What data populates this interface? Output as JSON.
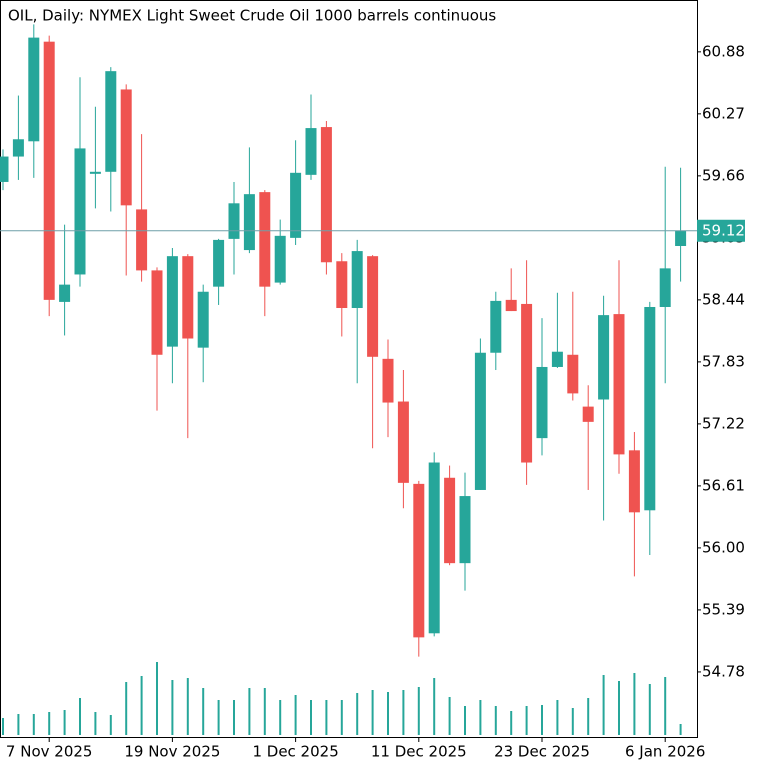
{
  "chart_data": {
    "type": "candlestick",
    "title": "OIL, Daily:  NYMEX Light Sweet Crude Oil 1000 barrels continuous",
    "categories": [
      null,
      null,
      null,
      "7 Nov 2025",
      null,
      null,
      null,
      null,
      null,
      null,
      null,
      "19 Nov 2025",
      null,
      null,
      null,
      null,
      null,
      null,
      null,
      "1 Dec 2025",
      null,
      null,
      null,
      null,
      null,
      null,
      null,
      "11 Dec 2025",
      null,
      null,
      null,
      null,
      null,
      null,
      null,
      "23 Dec 2025",
      null,
      null,
      null,
      null,
      null,
      null,
      null,
      "6 Jan 2026",
      null
    ],
    "open": [
      59.6,
      59.85,
      60.0,
      60.98,
      58.42,
      58.69,
      59.68,
      59.7,
      60.51,
      59.33,
      58.73,
      57.98,
      58.87,
      57.97,
      58.57,
      59.04,
      58.93,
      59.5,
      58.61,
      59.05,
      59.67,
      60.14,
      58.82,
      58.36,
      58.87,
      57.86,
      57.44,
      56.63,
      55.16,
      56.69,
      55.85,
      56.57,
      57.92,
      58.44,
      58.4,
      57.08,
      57.78,
      57.9,
      57.39,
      57.46,
      58.3,
      56.96,
      56.37,
      58.37,
      58.97
    ],
    "high": [
      59.92,
      60.45,
      61.15,
      61.04,
      59.18,
      60.63,
      60.34,
      60.73,
      60.56,
      60.07,
      58.76,
      58.95,
      58.89,
      58.59,
      59.04,
      59.6,
      59.94,
      59.52,
      59.23,
      60.01,
      60.46,
      60.2,
      58.9,
      59.03,
      58.88,
      58.05,
      57.75,
      56.66,
      56.94,
      56.81,
      56.74,
      58.06,
      58.52,
      58.75,
      58.83,
      58.26,
      58.51,
      58.52,
      57.6,
      58.48,
      58.83,
      57.14,
      58.42,
      59.75,
      59.74
    ],
    "low": [
      59.52,
      59.62,
      59.64,
      58.28,
      58.09,
      58.57,
      59.34,
      59.31,
      58.68,
      58.62,
      57.35,
      57.62,
      57.08,
      57.63,
      58.39,
      58.69,
      58.9,
      58.28,
      58.59,
      58.98,
      59.62,
      58.69,
      58.08,
      57.62,
      56.98,
      57.09,
      56.39,
      54.93,
      55.13,
      55.83,
      55.58,
      56.57,
      57.75,
      58.33,
      56.62,
      56.91,
      57.77,
      57.45,
      56.57,
      56.27,
      56.73,
      55.72,
      55.93,
      57.62,
      58.62
    ],
    "close": [
      59.85,
      60.02,
      61.02,
      58.44,
      58.59,
      59.93,
      59.7,
      60.69,
      59.37,
      58.73,
      57.9,
      58.87,
      58.06,
      58.52,
      59.03,
      59.39,
      59.48,
      58.57,
      59.07,
      59.69,
      60.13,
      58.81,
      58.36,
      58.92,
      57.88,
      57.43,
      56.64,
      55.12,
      56.84,
      55.85,
      56.51,
      57.92,
      58.43,
      58.33,
      56.84,
      57.78,
      57.93,
      57.52,
      57.24,
      58.29,
      56.92,
      56.35,
      58.37,
      58.75,
      59.12
    ],
    "volume": [
      17,
      21,
      21,
      23,
      25,
      37,
      23,
      20,
      53,
      59,
      73,
      55,
      57,
      47,
      35,
      35,
      47,
      47,
      35,
      40,
      35,
      35,
      35,
      42,
      45,
      43,
      45,
      48,
      57,
      38,
      29,
      35,
      29,
      24,
      29,
      30,
      35,
      27,
      37,
      60,
      54,
      62,
      51,
      58,
      11
    ],
    "vlim": [
      0,
      100
    ],
    "up_color": "#26a69a",
    "down_color": "#ef5350",
    "ylim": [
      54.13,
      61.39
    ],
    "yticks": [
      54.78,
      55.39,
      {
        "value": 56,
        "label": "56.00"
      },
      56.61,
      57.22,
      57.83,
      58.44,
      59.05,
      59.66,
      60.27,
      60.88
    ],
    "last_price": 59.12
  }
}
